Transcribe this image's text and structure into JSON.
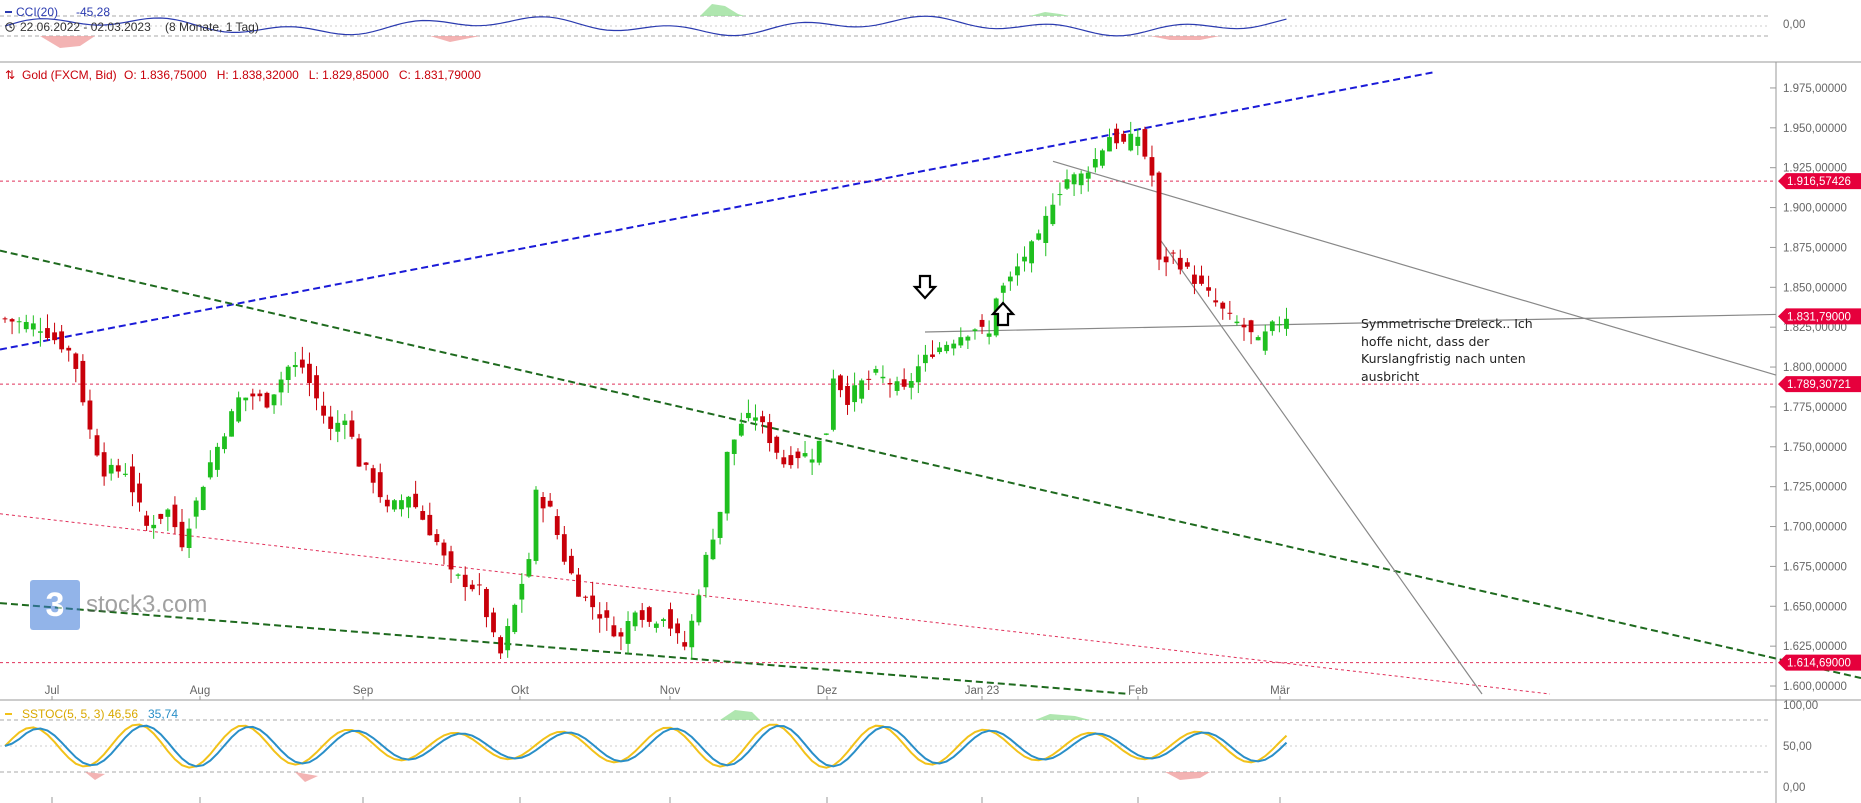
{
  "cci": {
    "label": "CCI(20)",
    "value": "-45,28",
    "range": "22.06.2022 - 02.03.2023",
    "range_note": "(8 Monate, 1 Tag)",
    "axis_label": "0,00"
  },
  "main": {
    "instrument": "Gold (FXCM, Bid)",
    "ohlc": "O: 1.836,75000   H: 1.838,32000   L: 1.829,85000   C: 1.831,79000",
    "annotation": [
      "Symmetrische Dreieck.. Ich",
      "hoffe nicht, dass der",
      "Kurslangfristig nach unten",
      "ausbricht"
    ],
    "watermark": "stock3.com",
    "price_badges": [
      {
        "label": "1.916,57426",
        "value": 1916.57
      },
      {
        "label": "1.831,79000",
        "value": 1831.79
      },
      {
        "label": "1.789,30721",
        "value": 1789.31
      },
      {
        "label": "1.614,69000",
        "value": 1614.69
      }
    ]
  },
  "stoch": {
    "label": "SSTOC(5, 5, 3)",
    "k": "46,56",
    "d": "35,74",
    "axis_labels": [
      "100,00",
      "50,00",
      "0,00"
    ]
  },
  "colors": {
    "up": "#1fbf1f",
    "down": "#c8000a",
    "blue_trend": "#1a1ad8",
    "green_trend": "#1e6a1e",
    "red_dotted": "#e0305a",
    "badge": "#e6003c"
  },
  "chart_data": {
    "type": "candlestick",
    "ylim": [
      1595,
      1985
    ],
    "yticks": [
      "1.975,00000",
      "1.950,00000",
      "1.925,00000",
      "1.900,00000",
      "1.875,00000",
      "1.850,00000",
      "1.825,00000",
      "1.800,00000",
      "1.775,00000",
      "1.750,00000",
      "1.725,00000",
      "1.700,00000",
      "1.675,00000",
      "1.650,00000",
      "1.625,00000",
      "1.600,00000"
    ],
    "months": [
      "Jul",
      "Aug",
      "Sep",
      "Okt",
      "Nov",
      "Dez",
      "Jan 23",
      "Feb",
      "Mär"
    ],
    "close_path": [
      [
        0,
        1830
      ],
      [
        5,
        1825
      ],
      [
        9,
        1810
      ],
      [
        10,
        1800
      ],
      [
        12,
        1760
      ],
      [
        14,
        1735
      ],
      [
        17,
        1735
      ],
      [
        20,
        1700
      ],
      [
        23,
        1710
      ],
      [
        25,
        1690
      ],
      [
        27,
        1715
      ],
      [
        29,
        1740
      ],
      [
        31,
        1760
      ],
      [
        33,
        1780
      ],
      [
        35,
        1782
      ],
      [
        37,
        1778
      ],
      [
        40,
        1800
      ],
      [
        42,
        1800
      ],
      [
        44,
        1780
      ],
      [
        46,
        1760
      ],
      [
        48,
        1770
      ],
      [
        50,
        1740
      ],
      [
        52,
        1730
      ],
      [
        54,
        1710
      ],
      [
        57,
        1720
      ],
      [
        59,
        1705
      ],
      [
        61,
        1690
      ],
      [
        63,
        1670
      ],
      [
        65,
        1665
      ],
      [
        67,
        1660
      ],
      [
        69,
        1630
      ],
      [
        70,
        1620
      ],
      [
        72,
        1650
      ],
      [
        74,
        1680
      ],
      [
        75,
        1720
      ],
      [
        77,
        1710
      ],
      [
        79,
        1680
      ],
      [
        81,
        1660
      ],
      [
        83,
        1650
      ],
      [
        85,
        1640
      ],
      [
        87,
        1630
      ],
      [
        89,
        1650
      ],
      [
        91,
        1640
      ],
      [
        93,
        1645
      ],
      [
        95,
        1630
      ],
      [
        96,
        1625
      ],
      [
        97,
        1640
      ],
      [
        99,
        1680
      ],
      [
        101,
        1710
      ],
      [
        102,
        1745
      ],
      [
        104,
        1765
      ],
      [
        106,
        1770
      ],
      [
        108,
        1755
      ],
      [
        110,
        1740
      ],
      [
        112,
        1745
      ],
      [
        114,
        1745
      ],
      [
        116,
        1760
      ],
      [
        117,
        1795
      ],
      [
        119,
        1780
      ],
      [
        121,
        1790
      ],
      [
        123,
        1795
      ],
      [
        125,
        1790
      ],
      [
        127,
        1785
      ],
      [
        129,
        1800
      ],
      [
        131,
        1810
      ],
      [
        133,
        1815
      ],
      [
        135,
        1820
      ],
      [
        137,
        1825
      ],
      [
        139,
        1820
      ],
      [
        140,
        1845
      ],
      [
        142,
        1855
      ],
      [
        144,
        1870
      ],
      [
        146,
        1880
      ],
      [
        148,
        1905
      ],
      [
        150,
        1918
      ],
      [
        152,
        1920
      ],
      [
        154,
        1930
      ],
      [
        156,
        1945
      ],
      [
        158,
        1940
      ],
      [
        160,
        1945
      ],
      [
        162,
        1920
      ],
      [
        163,
        1865
      ],
      [
        165,
        1870
      ],
      [
        167,
        1860
      ],
      [
        169,
        1850
      ],
      [
        171,
        1840
      ],
      [
        173,
        1830
      ],
      [
        175,
        1825
      ],
      [
        177,
        1815
      ],
      [
        179,
        1825
      ],
      [
        181,
        1832
      ]
    ],
    "levels": [
      1916.57,
      1789.31,
      1614.69
    ]
  }
}
